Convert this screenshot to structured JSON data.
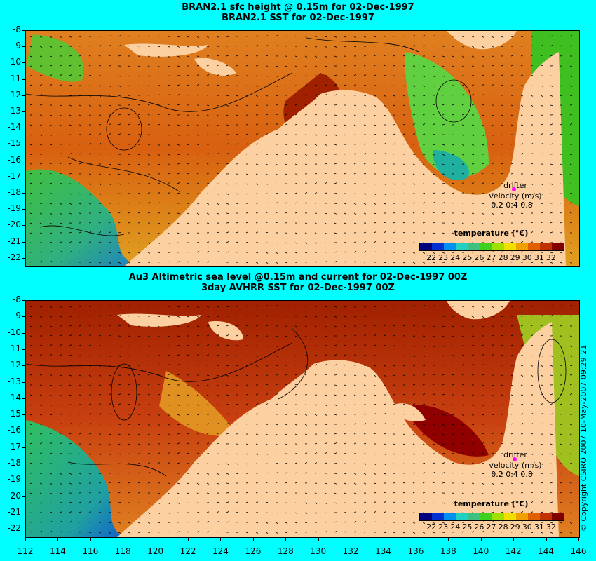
{
  "top_panel": {
    "title_line1": "BRAN2.1 sfc height @ 0.15m for 02-Dec-1997",
    "title_line2": "BRAN2.1 SST for 02-Dec-1997"
  },
  "bottom_panel": {
    "title_line1": "Au3 Altimetric sea level  @0.15m and current for 02-Dec-1997 00Z",
    "title_line2": "3day AVHRR SST for 02-Dec-1997 00Z"
  },
  "legend": {
    "title": "temperature (°C)",
    "ticks": [
      "22",
      "23",
      "24",
      "25",
      "26",
      "27",
      "28",
      "29",
      "30",
      "31",
      "32"
    ],
    "colors": [
      "#00007f",
      "#0030d0",
      "#0090f0",
      "#20d0c0",
      "#40c080",
      "#40d020",
      "#a0e000",
      "#f0e000",
      "#f0a000",
      "#e06000",
      "#c03000",
      "#800000"
    ]
  },
  "drifter": {
    "label1": "drifter",
    "label2": "velocity (m/s)",
    "scale": "0.2 0.4 0.8",
    "marker_color": "#ff00ff"
  },
  "axes": {
    "lat_labels": [
      "-8",
      "-9",
      "-10",
      "-11",
      "-12",
      "-13",
      "-14",
      "-15",
      "-16",
      "-17",
      "-18",
      "-19",
      "-20",
      "-21",
      "-22"
    ],
    "lon_labels": [
      "112",
      "114",
      "116",
      "118",
      "120",
      "122",
      "124",
      "126",
      "128",
      "130",
      "132",
      "134",
      "136",
      "138",
      "140",
      "142",
      "144",
      "146"
    ]
  },
  "copyright": "© Copyright CSIRO 2007  10-May-2007 09:29:21",
  "colors": {
    "background": "#00ffff",
    "land": "#fcd0a0"
  }
}
